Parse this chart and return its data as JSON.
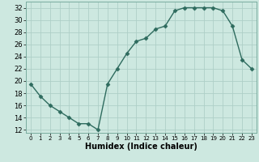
{
  "x": [
    0,
    1,
    2,
    3,
    4,
    5,
    6,
    7,
    8,
    9,
    10,
    11,
    12,
    13,
    14,
    15,
    16,
    17,
    18,
    19,
    20,
    21,
    22,
    23
  ],
  "y": [
    19.5,
    17.5,
    16.0,
    15.0,
    14.0,
    13.0,
    13.0,
    12.0,
    19.5,
    22.0,
    24.5,
    26.5,
    27.0,
    28.5,
    29.0,
    31.5,
    32.0,
    32.0,
    32.0,
    32.0,
    31.5,
    29.0,
    23.5,
    22.0
  ],
  "xlabel": "Humidex (Indice chaleur)",
  "xlim": [
    -0.5,
    23.5
  ],
  "ylim": [
    11.5,
    33
  ],
  "yticks": [
    12,
    14,
    16,
    18,
    20,
    22,
    24,
    26,
    28,
    30,
    32
  ],
  "xticks": [
    0,
    1,
    2,
    3,
    4,
    5,
    6,
    7,
    8,
    9,
    10,
    11,
    12,
    13,
    14,
    15,
    16,
    17,
    18,
    19,
    20,
    21,
    22,
    23
  ],
  "line_color": "#2e6b5e",
  "bg_color": "#cde8e0",
  "grid_color": "#aecfc7",
  "markersize": 2.5,
  "linewidth": 1.0
}
